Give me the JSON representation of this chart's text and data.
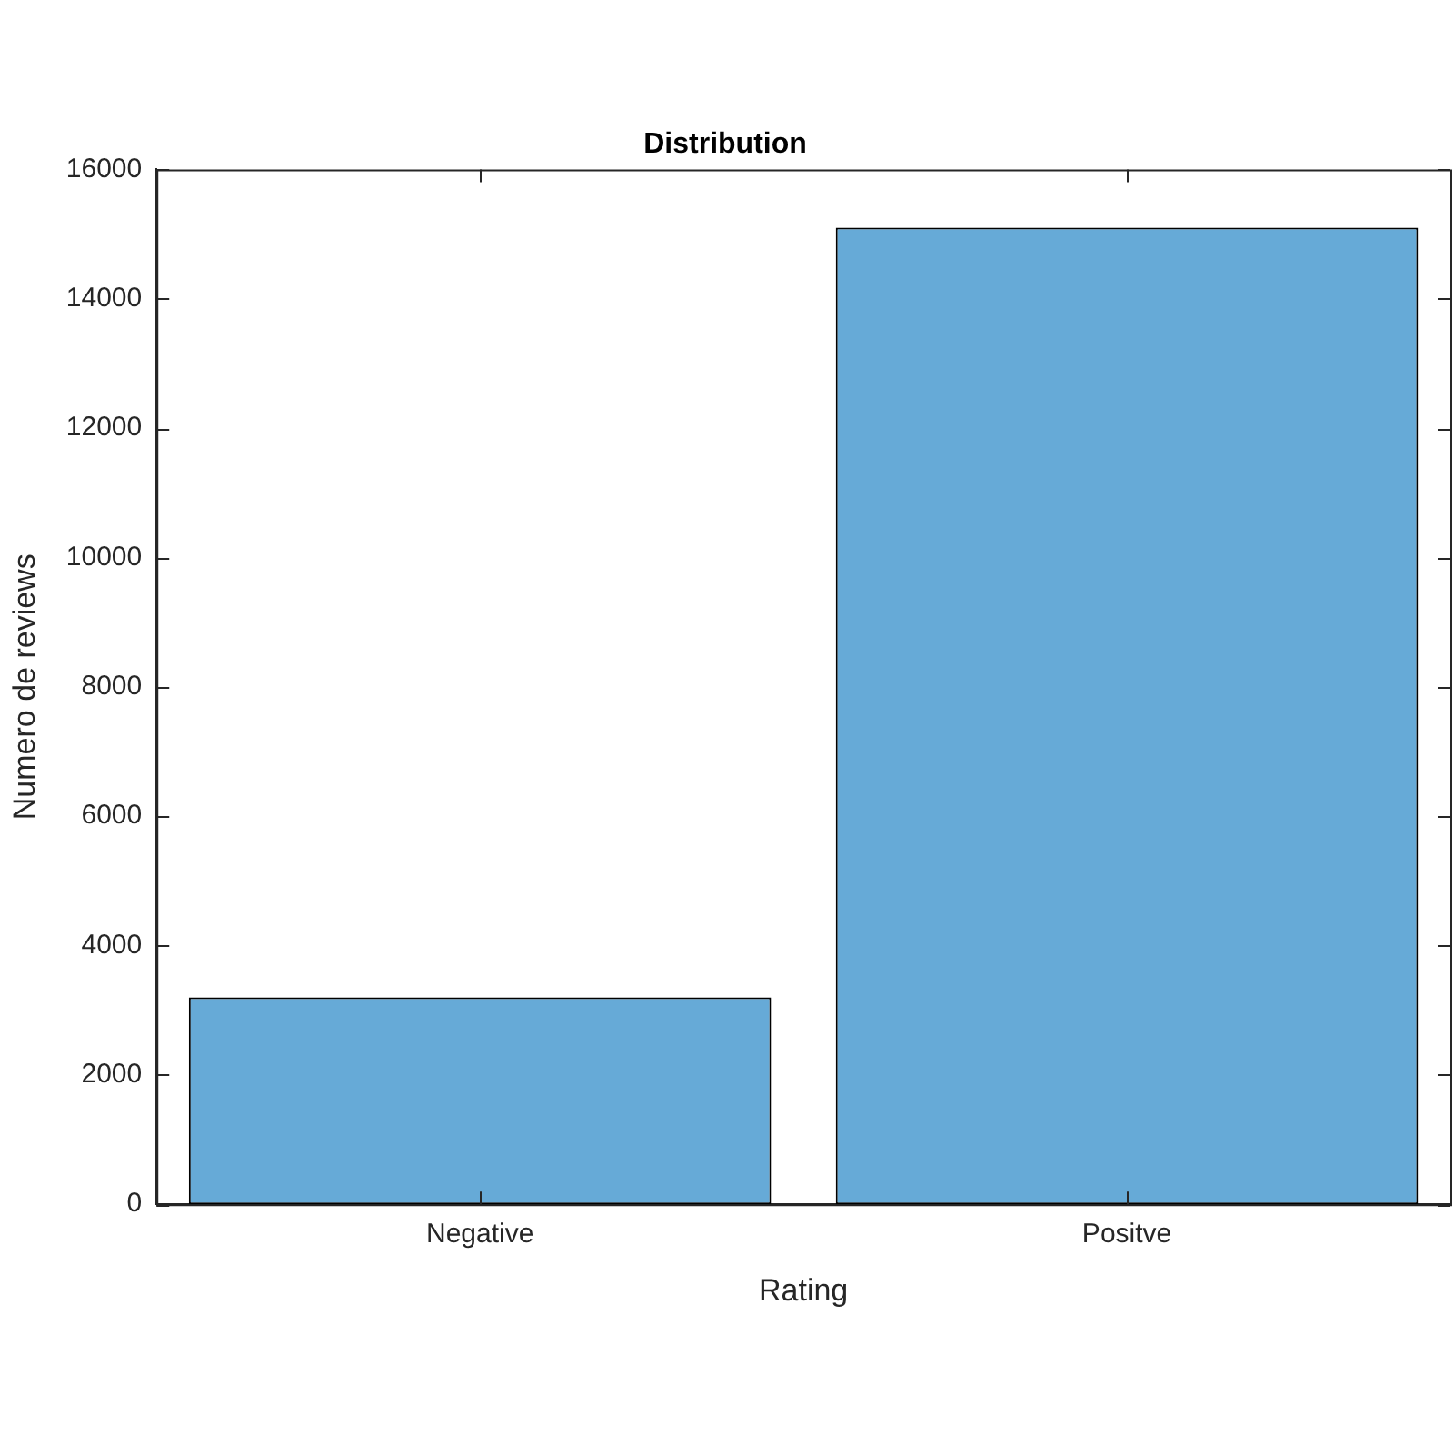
{
  "chart_data": {
    "type": "bar",
    "title": "Distribution",
    "xlabel": "Rating",
    "ylabel": "Numero de reviews",
    "categories": [
      "Negative",
      "Positve"
    ],
    "values": [
      3200,
      15100
    ],
    "color": "#66aad7",
    "ylim": [
      0,
      16000
    ],
    "yticks": [
      0,
      2000,
      4000,
      6000,
      8000,
      10000,
      12000,
      14000,
      16000
    ],
    "grid": false,
    "legend": false
  }
}
